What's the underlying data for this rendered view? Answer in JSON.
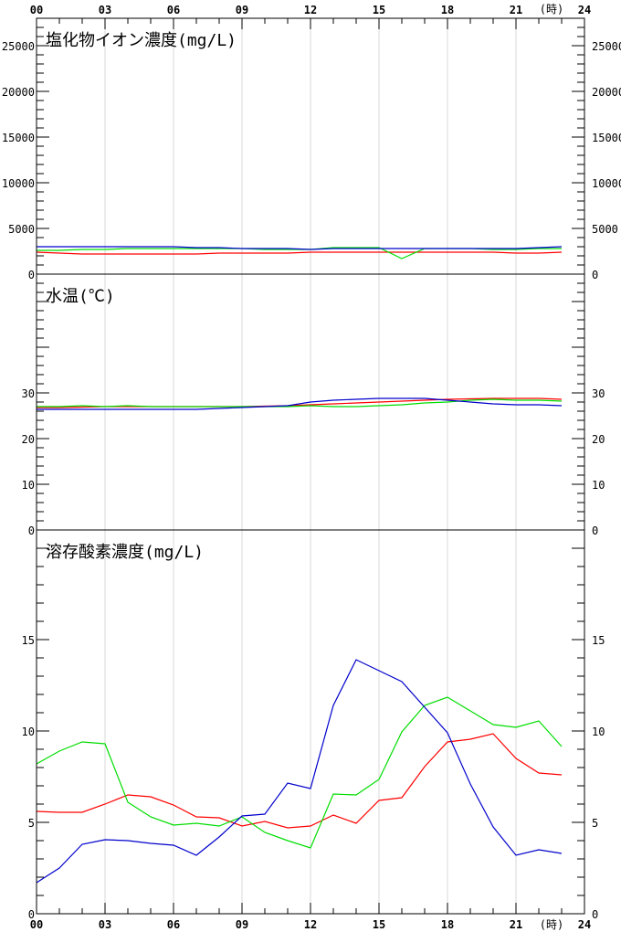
{
  "hour_labels": [
    "00",
    "03",
    "06",
    "09",
    "12",
    "15",
    "18",
    "21",
    "24"
  ],
  "unit_label": "(時)",
  "chart_data": [
    {
      "type": "line",
      "title": "塩化物イオン濃度(mg/L)",
      "x": [
        0,
        1,
        2,
        3,
        4,
        5,
        6,
        7,
        8,
        9,
        10,
        11,
        12,
        13,
        14,
        15,
        16,
        17,
        18,
        19,
        20,
        21,
        22,
        23
      ],
      "ylim": [
        0,
        28000
      ],
      "yticks": [
        0,
        5000,
        10000,
        15000,
        20000,
        25000
      ],
      "series": [
        {
          "color": "#ff0000",
          "values": [
            2400,
            2300,
            2200,
            2200,
            2200,
            2200,
            2200,
            2200,
            2300,
            2300,
            2300,
            2300,
            2400,
            2400,
            2400,
            2400,
            2400,
            2400,
            2400,
            2400,
            2400,
            2300,
            2300,
            2400
          ]
        },
        {
          "color": "#00dd00",
          "values": [
            2600,
            2600,
            2700,
            2700,
            2800,
            2800,
            2800,
            2800,
            2800,
            2800,
            2700,
            2700,
            2700,
            2900,
            2900,
            2900,
            1700,
            2800,
            2800,
            2800,
            2700,
            2700,
            2800,
            2800
          ]
        },
        {
          "color": "#0000cc",
          "values": [
            3000,
            3000,
            3000,
            3000,
            3000,
            3000,
            3000,
            2900,
            2900,
            2800,
            2800,
            2800,
            2700,
            2800,
            2800,
            2800,
            2800,
            2800,
            2800,
            2800,
            2800,
            2800,
            2900,
            3000
          ]
        }
      ]
    },
    {
      "type": "line",
      "title": "水温(℃)",
      "x": [
        0,
        1,
        2,
        3,
        4,
        5,
        6,
        7,
        8,
        9,
        10,
        11,
        12,
        13,
        14,
        15,
        16,
        17,
        18,
        19,
        20,
        21,
        22,
        23
      ],
      "ylim": [
        0,
        56
      ],
      "yticks": [
        0,
        10,
        20,
        30
      ],
      "series": [
        {
          "color": "#ff0000",
          "values": [
            26.8,
            26.8,
            26.9,
            27.0,
            27.0,
            27.0,
            27.0,
            27.0,
            27.0,
            27.0,
            27.1,
            27.2,
            27.4,
            27.6,
            27.8,
            28.0,
            28.2,
            28.4,
            28.6,
            28.7,
            28.8,
            28.8,
            28.8,
            28.6
          ]
        },
        {
          "color": "#00dd00",
          "values": [
            27.0,
            27.0,
            27.2,
            27.0,
            27.2,
            27.0,
            27.0,
            27.0,
            27.0,
            27.0,
            27.0,
            27.0,
            27.2,
            27.0,
            27.0,
            27.2,
            27.4,
            27.8,
            28.0,
            28.4,
            28.6,
            28.4,
            28.4,
            28.2
          ]
        },
        {
          "color": "#0000cc",
          "values": [
            26.4,
            26.4,
            26.4,
            26.4,
            26.4,
            26.4,
            26.4,
            26.4,
            26.6,
            26.8,
            27.0,
            27.2,
            28.0,
            28.4,
            28.6,
            28.8,
            28.8,
            28.8,
            28.4,
            28.0,
            27.6,
            27.4,
            27.4,
            27.2
          ]
        }
      ]
    },
    {
      "type": "line",
      "title": "溶存酸素濃度(mg/L)",
      "x": [
        0,
        1,
        2,
        3,
        4,
        5,
        6,
        7,
        8,
        9,
        10,
        11,
        12,
        13,
        14,
        15,
        16,
        17,
        18,
        19,
        20,
        21,
        22,
        23
      ],
      "ylim": [
        0,
        21
      ],
      "yticks": [
        0,
        5,
        10,
        15
      ],
      "series": [
        {
          "color": "#ff0000",
          "values": [
            5.6,
            5.55,
            5.55,
            6.0,
            6.5,
            6.4,
            5.95,
            5.3,
            5.25,
            4.8,
            5.05,
            4.7,
            4.8,
            5.4,
            4.95,
            6.2,
            6.35,
            8.05,
            9.4,
            9.55,
            9.85,
            8.5,
            7.7,
            7.6
          ]
        },
        {
          "color": "#00dd00",
          "values": [
            8.2,
            8.9,
            9.4,
            9.3,
            6.1,
            5.3,
            4.85,
            4.95,
            4.8,
            5.3,
            4.45,
            4.0,
            3.6,
            6.55,
            6.5,
            7.35,
            9.95,
            11.4,
            11.85,
            11.1,
            10.35,
            10.2,
            10.55,
            9.15
          ]
        },
        {
          "color": "#0000cc",
          "values": [
            1.7,
            2.5,
            3.8,
            4.05,
            4.0,
            3.85,
            3.75,
            3.2,
            4.2,
            5.35,
            5.45,
            7.15,
            6.85,
            11.4,
            13.9,
            13.3,
            12.7,
            11.3,
            9.9,
            7.1,
            4.75,
            3.2,
            3.5,
            3.3
          ]
        }
      ]
    }
  ]
}
